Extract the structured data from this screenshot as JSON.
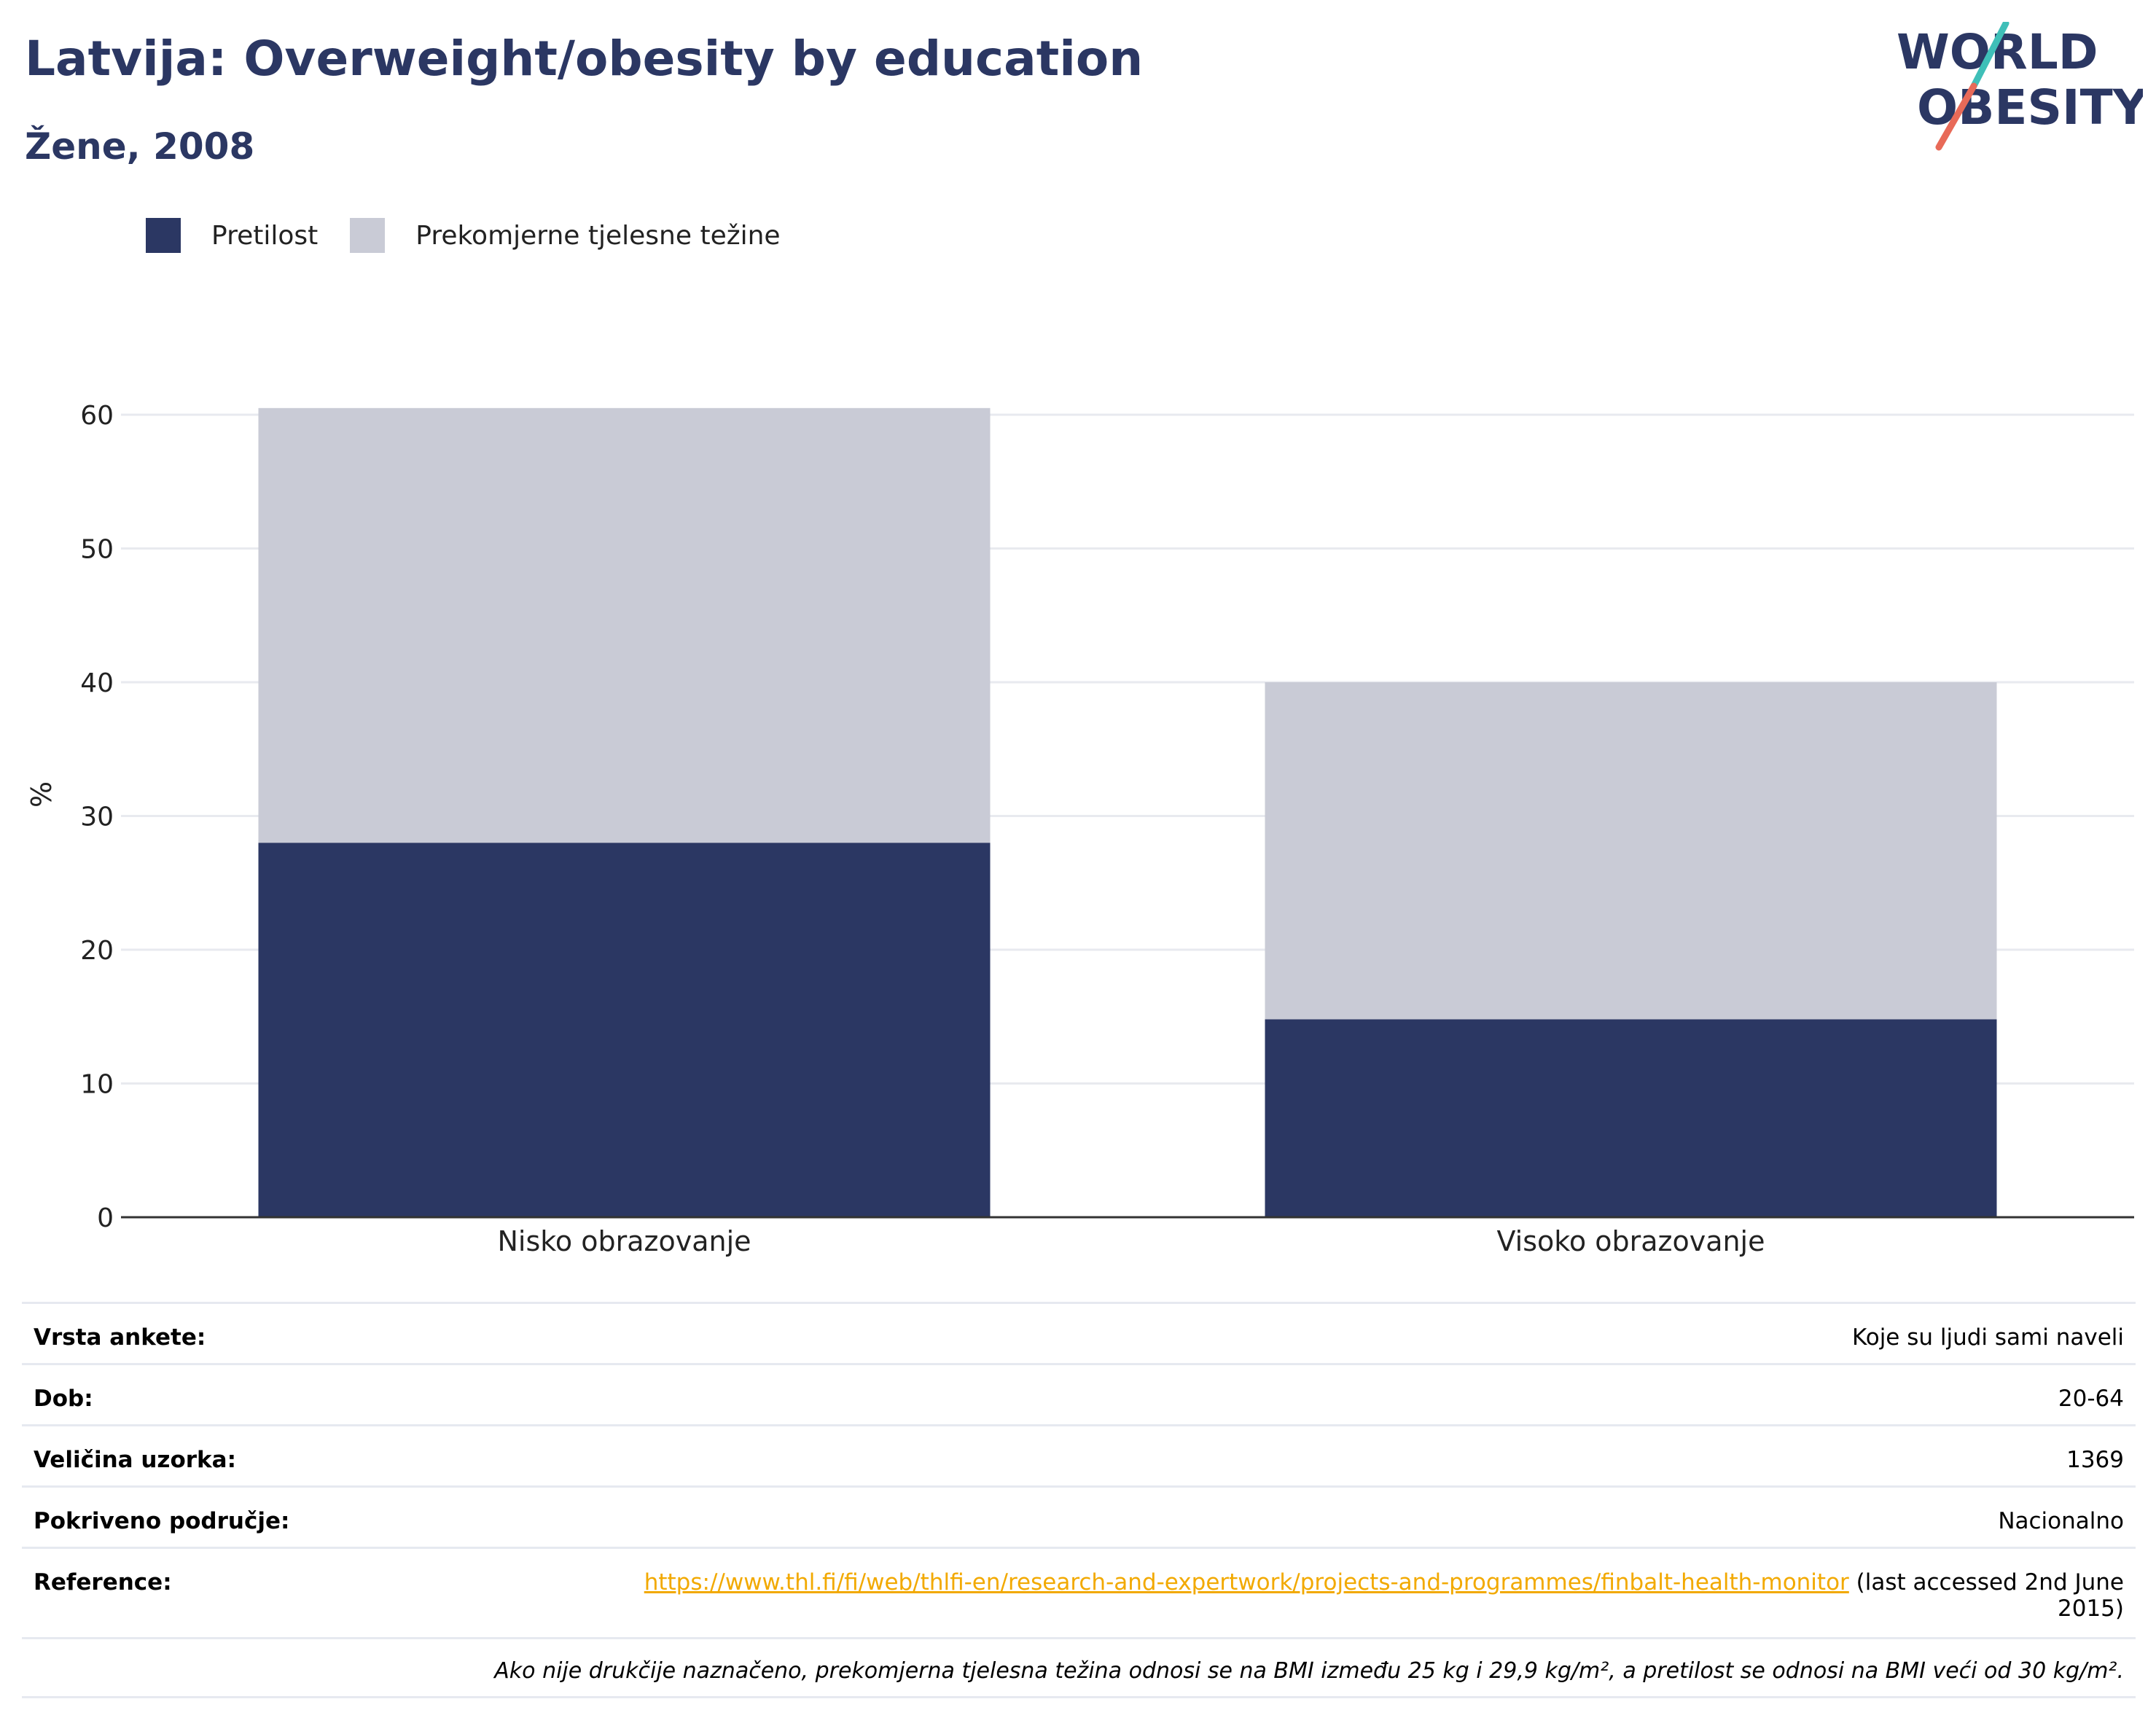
{
  "title": "Latvija: Overweight/obesity by education",
  "subtitle": "Žene, 2008",
  "logo": {
    "line1": "WORLD",
    "line2": "OBESITY"
  },
  "colors": {
    "obesity": "#2b3763",
    "overweight": "#c9cbd6",
    "title": "#2b3763",
    "link": "#f2a900"
  },
  "chart_data": {
    "type": "bar",
    "stacked": true,
    "categories": [
      "Nisko obrazovanje",
      "Visoko obrazovanje"
    ],
    "series": [
      {
        "name": "Pretilost",
        "values": [
          28.0,
          14.8
        ],
        "color": "#2b3763"
      },
      {
        "name": "Prekomjerne tjelesne težine",
        "values": [
          32.5,
          25.2
        ],
        "color": "#c9cbd6"
      }
    ],
    "ylabel": "%",
    "ylim": [
      0,
      60
    ],
    "yticks": [
      0,
      10,
      20,
      30,
      40,
      50,
      60
    ],
    "grid": true,
    "legend": "top-left"
  },
  "info": {
    "rows": [
      {
        "label": "Vrsta ankete:",
        "value": "Koje su ljudi sami naveli"
      },
      {
        "label": "Dob:",
        "value": "20-64"
      },
      {
        "label": "Veličina uzorka:",
        "value": "1369"
      },
      {
        "label": "Pokriveno područje:",
        "value": "Nacionalno"
      }
    ],
    "reference": {
      "label": "Reference:",
      "link": "https://www.thl.fi/fi/web/thlfi-en/research-and-expertwork/projects-and-programmes/finbalt-health-monitor",
      "suffix": " (last accessed 2nd June 2015)"
    },
    "note": "Ako nije drukčije naznačeno, prekomjerna tjelesna težina odnosi se na BMI između 25 kg i 29,9 kg/m², a pretilost se odnosi na BMI veći od 30 kg/m²."
  }
}
